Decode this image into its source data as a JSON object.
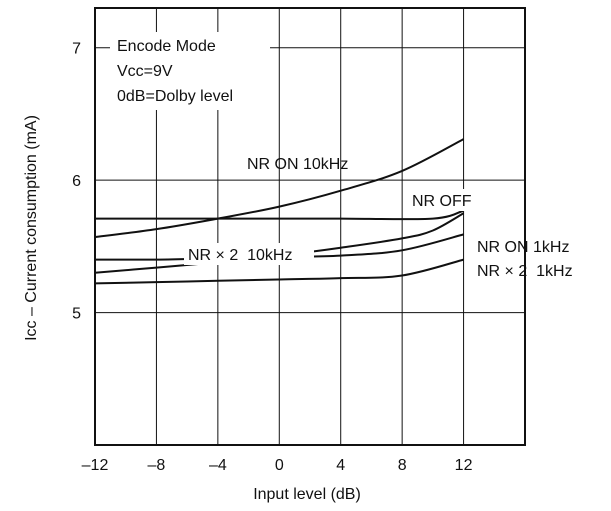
{
  "chart_data": {
    "type": "line",
    "xlabel": "Input level (dB)",
    "ylabel": "Icc – Current consumption (mA)",
    "xlim": [
      -12,
      16
    ],
    "ylim": [
      4,
      7.3
    ],
    "xticks": [
      "–12",
      "–8",
      "–4",
      "0",
      "4",
      "8",
      "12"
    ],
    "xtick_values": [
      -12,
      -8,
      -4,
      0,
      4,
      8,
      12
    ],
    "yticks": [
      "5",
      "6",
      "7"
    ],
    "ytick_values": [
      5,
      6,
      7
    ],
    "grid": true,
    "conditions": [
      "Encode Mode",
      "Vcc=9V",
      "0dB=Dolby level"
    ],
    "series": [
      {
        "name": "NR ON 10kHz",
        "x": [
          -12,
          -8,
          -4,
          0,
          4,
          8,
          12
        ],
        "y": [
          5.57,
          5.63,
          5.71,
          5.8,
          5.92,
          6.07,
          6.31
        ]
      },
      {
        "name": "NR OFF",
        "x": [
          -12,
          -4,
          0,
          4,
          10,
          12
        ],
        "y": [
          5.71,
          5.71,
          5.71,
          5.71,
          5.71,
          5.77
        ]
      },
      {
        "name": "NR × 2  10kHz",
        "x": [
          -12,
          -8,
          -4,
          0,
          4,
          8,
          10,
          12
        ],
        "y": [
          5.3,
          5.34,
          5.38,
          5.43,
          5.49,
          5.56,
          5.62,
          5.75
        ]
      },
      {
        "name": "NR ON 1kHz",
        "x": [
          -12,
          -8,
          -4,
          0,
          4,
          8,
          12
        ],
        "y": [
          5.4,
          5.4,
          5.41,
          5.42,
          5.43,
          5.47,
          5.59
        ]
      },
      {
        "name": "NR × 2  1kHz",
        "x": [
          -12,
          -8,
          -4,
          0,
          4,
          8,
          12
        ],
        "y": [
          5.22,
          5.23,
          5.24,
          5.25,
          5.26,
          5.28,
          5.4
        ]
      }
    ]
  }
}
